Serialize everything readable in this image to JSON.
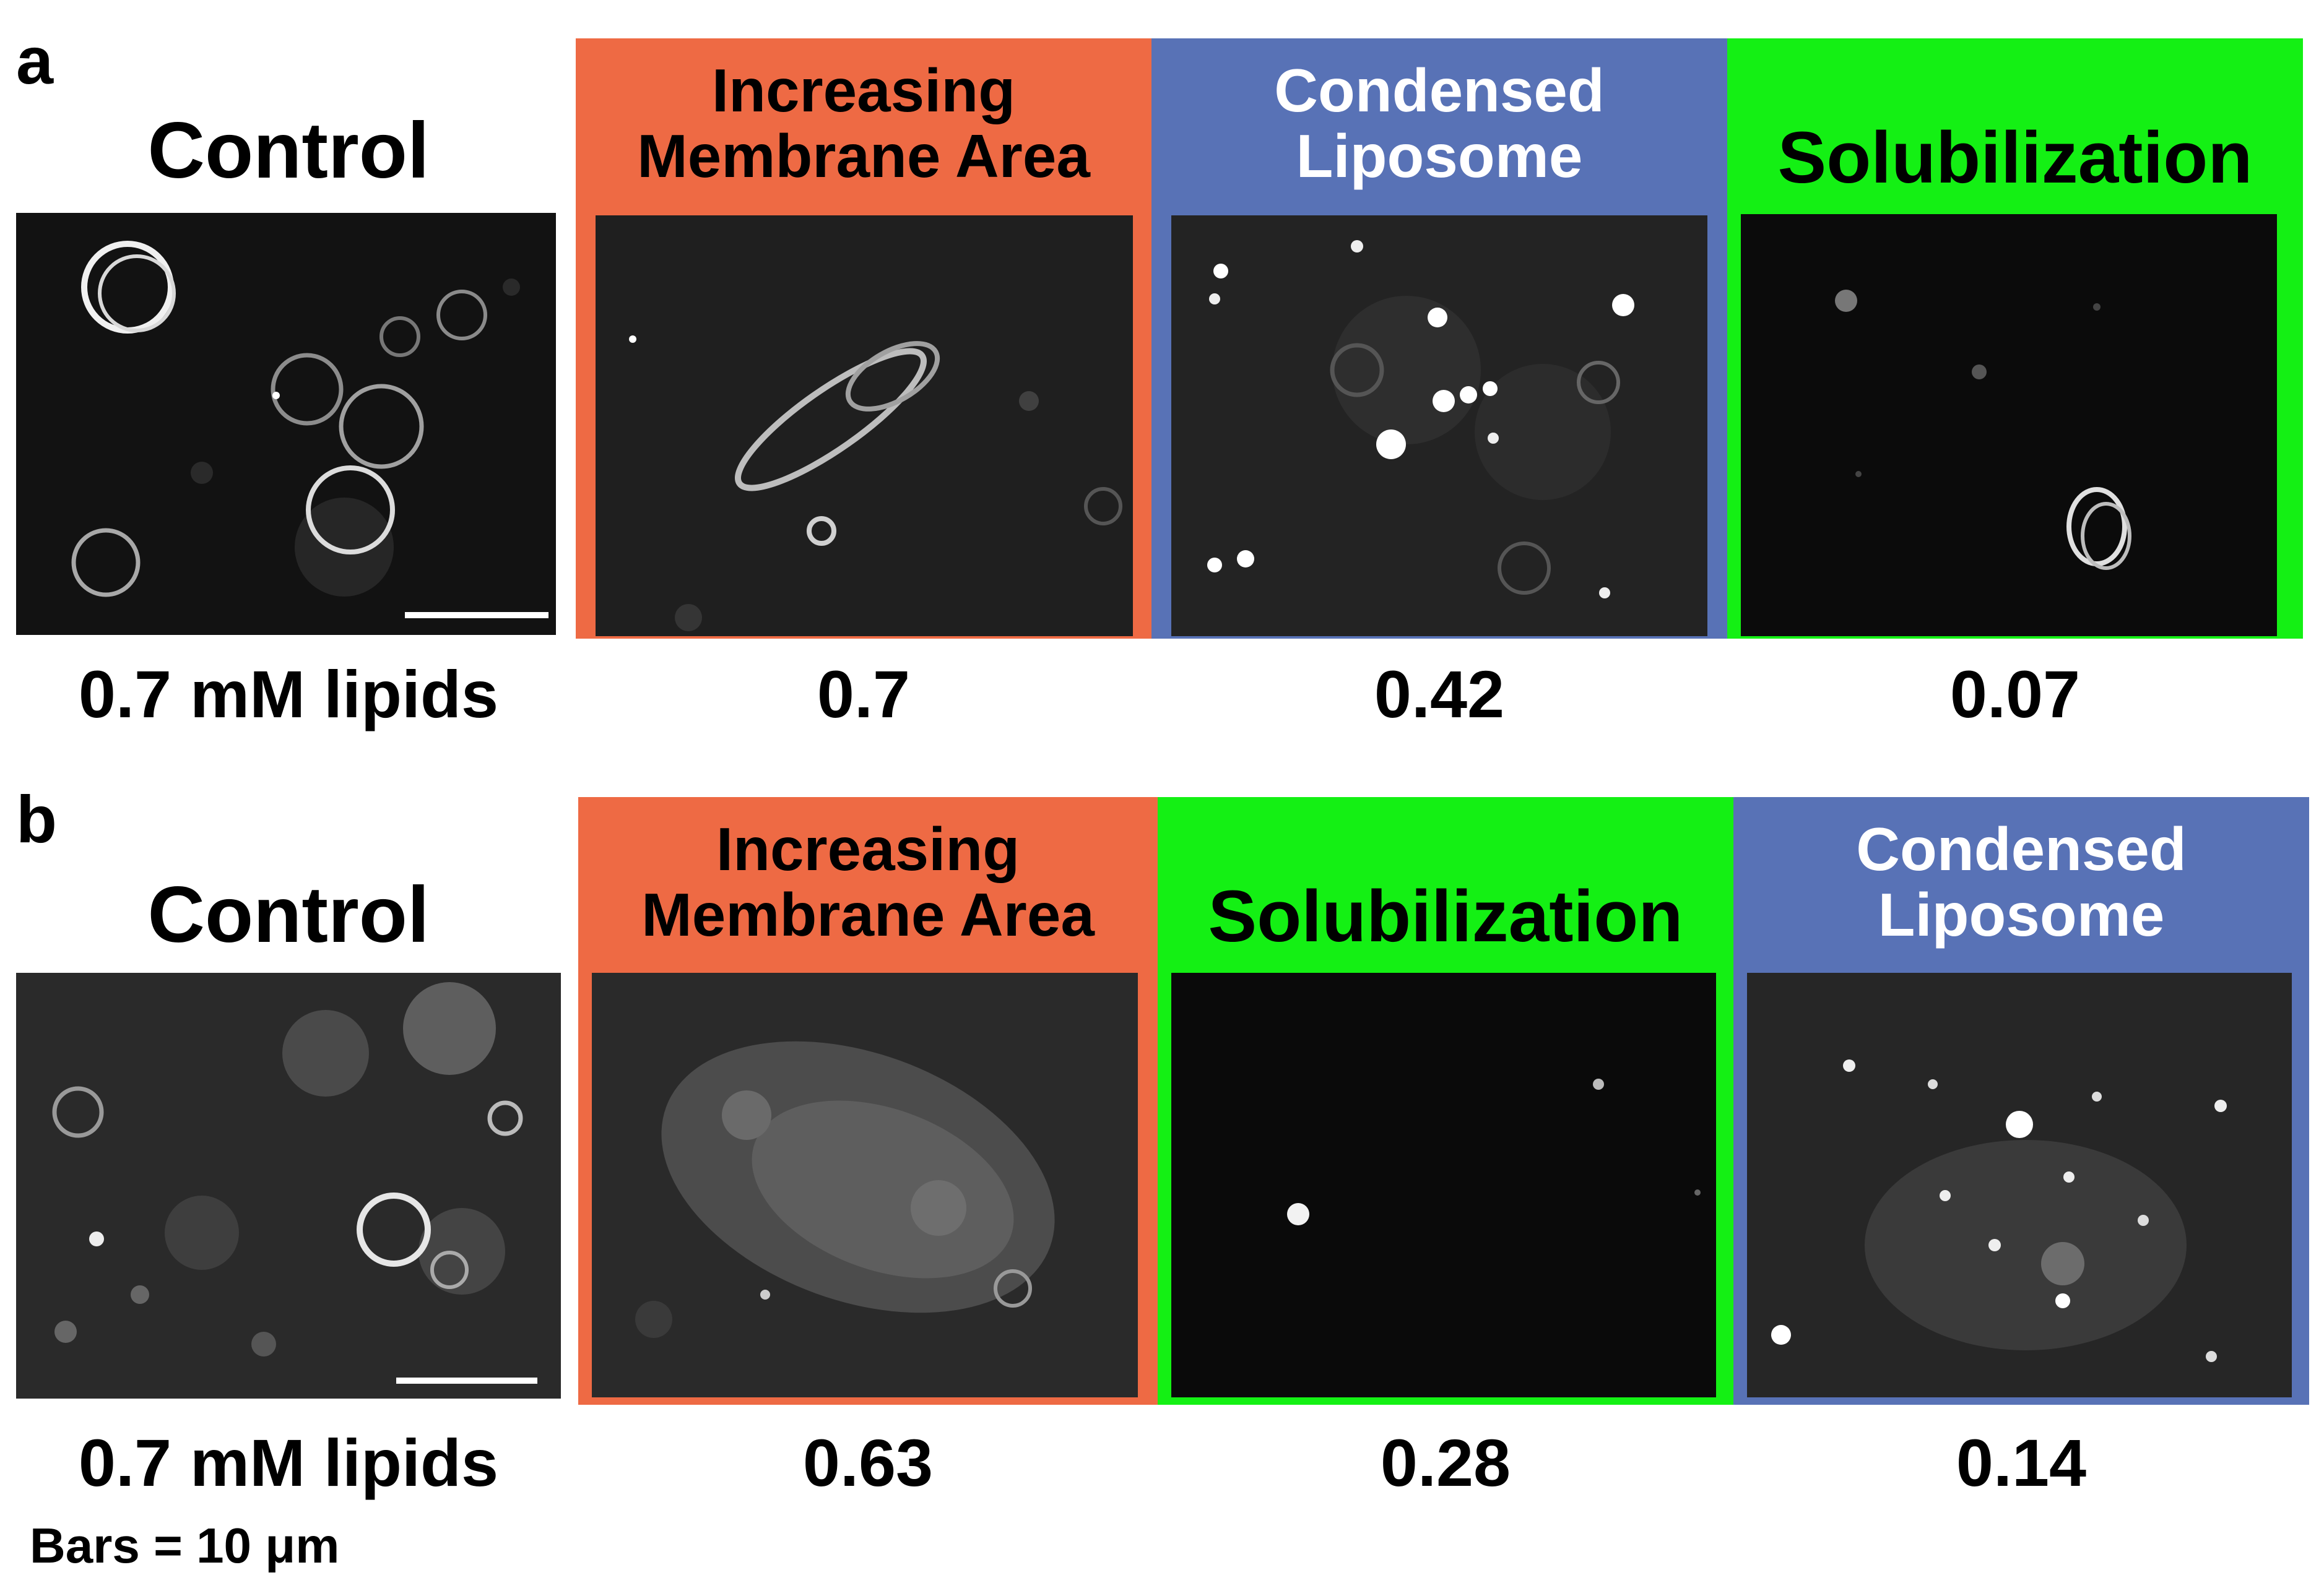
{
  "colors": {
    "increasing": "#ee6a44",
    "condensed": "#5872b6",
    "solubilization": "#14f014",
    "light_text": "#ffffff",
    "dark_text": "#000000"
  },
  "panel_a": {
    "letter": "a",
    "control_title": "Control",
    "control_value": "0.7 mM lipids",
    "panels": [
      {
        "kind": "increasing",
        "label_line1": "Increasing",
        "label_line2": "Membrane Area",
        "value": "0.7"
      },
      {
        "kind": "condensed",
        "label_line1": "Condensed",
        "label_line2": "Liposome",
        "value": "0.42"
      },
      {
        "kind": "solubilization",
        "label_line1": "Solubilization",
        "label_line2": "",
        "value": "0.07"
      }
    ]
  },
  "panel_b": {
    "letter": "b",
    "control_title": "Control",
    "control_value": "0.7 mM lipids",
    "panels": [
      {
        "kind": "increasing",
        "label_line1": "Increasing",
        "label_line2": "Membrane Area",
        "value": "0.63"
      },
      {
        "kind": "solubilization",
        "label_line1": "Solubilization",
        "label_line2": "",
        "value": "0.28"
      },
      {
        "kind": "condensed",
        "label_line1": "Condensed",
        "label_line2": "Liposome",
        "value": "0.14"
      }
    ]
  },
  "scale_note": "Bars = 10 μm"
}
